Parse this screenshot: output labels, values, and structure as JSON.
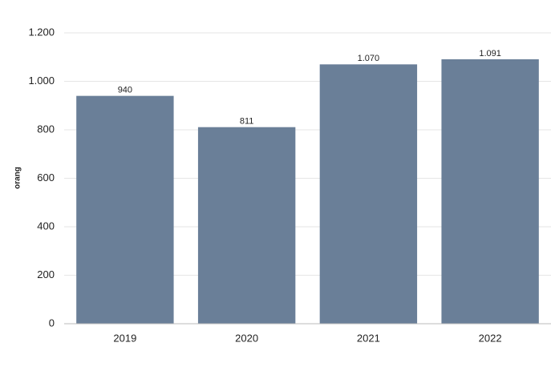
{
  "chart_data": {
    "type": "bar",
    "ylabel": "orang",
    "categories": [
      "2019",
      "2020",
      "2021",
      "2022"
    ],
    "values": [
      940,
      811,
      1070,
      1091
    ],
    "value_labels": [
      "940",
      "811",
      "1.070",
      "1.091"
    ],
    "color": "#6a7f98",
    "ylim": [
      0,
      1200
    ],
    "yticks": [
      0,
      200,
      400,
      600,
      800,
      {
        "value": 1000,
        "label": "1.000"
      },
      {
        "value": 1200,
        "label": "1.200"
      }
    ],
    "grid": true
  }
}
